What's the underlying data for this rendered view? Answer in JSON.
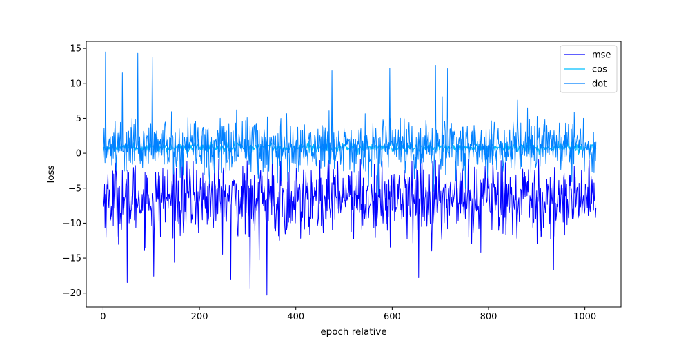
{
  "chart_data": {
    "type": "line",
    "title": "",
    "xlabel": "epoch relative",
    "ylabel": "loss",
    "xlim": [
      -35,
      1075
    ],
    "ylim": [
      -22,
      16
    ],
    "xticks": [
      0,
      200,
      400,
      600,
      800,
      1000
    ],
    "yticks": [
      -20,
      -15,
      -10,
      -5,
      0,
      5,
      10,
      15
    ],
    "grid": false,
    "legend": "upper-right",
    "n_points": 1024,
    "series": [
      {
        "name": "mse",
        "color": "#0000ff",
        "baseline": -6.5,
        "noise": 2.6,
        "min": -20.3,
        "max": -0.8,
        "spikes": [
          {
            "x": 50,
            "y": -18.5
          },
          {
            "x": 105,
            "y": -17.6
          },
          {
            "x": 265,
            "y": -18.1
          },
          {
            "x": 305,
            "y": -19.4
          },
          {
            "x": 340,
            "y": -20.3
          },
          {
            "x": 655,
            "y": -17.8
          },
          {
            "x": 935,
            "y": -16.7
          }
        ]
      },
      {
        "name": "cos",
        "color": "#00bfff",
        "baseline": 0.8,
        "noise": 0.35,
        "min": -0.5,
        "max": 2.0,
        "spikes": []
      },
      {
        "name": "dot",
        "color": "#0080ff",
        "baseline": 1.0,
        "noise": 2.0,
        "min": -7.0,
        "max": 14.5,
        "spikes": [
          {
            "x": 5,
            "y": 14.5
          },
          {
            "x": 72,
            "y": 14.3
          },
          {
            "x": 102,
            "y": 13.8
          },
          {
            "x": 40,
            "y": 11.5
          },
          {
            "x": 690,
            "y": 12.6
          },
          {
            "x": 715,
            "y": 12.1
          },
          {
            "x": 475,
            "y": 11.8
          },
          {
            "x": 595,
            "y": 12.2
          },
          {
            "x": 860,
            "y": 7.6
          }
        ]
      }
    ]
  }
}
